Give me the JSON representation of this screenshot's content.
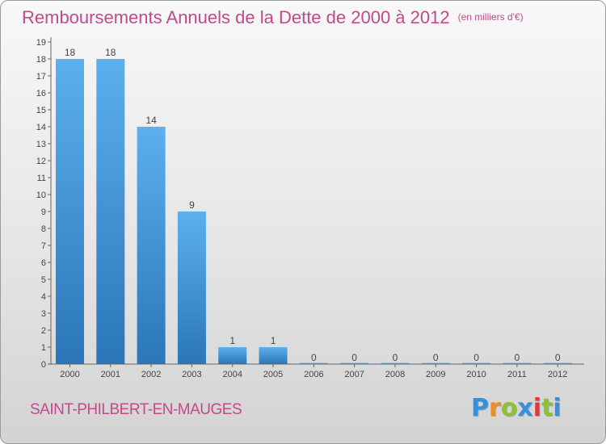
{
  "title": "Remboursements Annuels de la Dette de 2000 à 2012",
  "subtitle": "(en milliers d'€)",
  "commune": "SAINT-PHILBERT-EN-MAUGES",
  "logo": {
    "letters": [
      "P",
      "r",
      "o",
      "x",
      "i",
      "t",
      "i"
    ],
    "colors": [
      "#3a8fd6",
      "#ef8b1f",
      "#8fc22e",
      "#3a8fd6",
      "#e23a33",
      "#8fc22e",
      "#3a8fd6"
    ]
  },
  "colors": {
    "bar_light": "#5cb0ee",
    "bar_dark": "#2a76b8",
    "accent": "#c24a8c"
  },
  "chart_data": {
    "type": "bar",
    "categories": [
      "2000",
      "2001",
      "2002",
      "2003",
      "2004",
      "2005",
      "2006",
      "2007",
      "2008",
      "2009",
      "2010",
      "2011",
      "2012"
    ],
    "values": [
      18,
      18,
      14,
      9,
      1,
      1,
      0,
      0,
      0,
      0,
      0,
      0,
      0
    ],
    "data_labels": [
      "18",
      "18",
      "14",
      "9",
      "1",
      "1",
      "0",
      "0",
      "0",
      "0",
      "0",
      "0",
      "0"
    ],
    "y_ticks": [
      "0",
      "1",
      "2",
      "3",
      "4",
      "5",
      "6",
      "7",
      "8",
      "9",
      "10",
      "11",
      "12",
      "13",
      "14",
      "15",
      "16",
      "17",
      "18",
      "19"
    ],
    "ylim": [
      0,
      19
    ],
    "xlabel": "",
    "ylabel": "",
    "grid": false,
    "legend": "none"
  }
}
